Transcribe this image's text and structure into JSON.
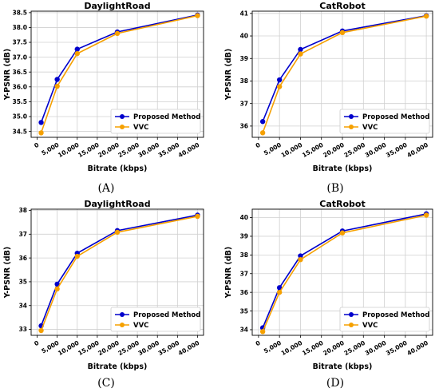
{
  "chart_data": [
    {
      "type": "line",
      "title": "DaylightRoad",
      "xlabel": "Bitrate (kbps)",
      "ylabel": "Y-PSNR (dB)",
      "xlim": [
        -1500,
        41500
      ],
      "ylim": [
        34.3,
        38.55
      ],
      "xticks": [
        0,
        5000,
        10000,
        15000,
        20000,
        25000,
        30000,
        35000,
        40000
      ],
      "xtick_labels": [
        "0",
        "5,000",
        "10,000",
        "15,000",
        "20,000",
        "25,000",
        "30,000",
        "35,000",
        "40,000"
      ],
      "yticks": [
        34.5,
        35.0,
        35.5,
        36.0,
        36.5,
        37.0,
        37.5,
        38.0,
        38.5
      ],
      "ytick_labels": [
        "34.5",
        "35.0",
        "35.5",
        "36.0",
        "36.5",
        "37.0",
        "37.5",
        "38.0",
        "38.5"
      ],
      "grid": true,
      "legend_position": "lower-right",
      "caption": "(A)",
      "series": [
        {
          "name": "Proposed Method",
          "color": "#0000cc",
          "x": [
            1000,
            5000,
            10000,
            20000,
            40000
          ],
          "y": [
            34.8,
            36.25,
            37.27,
            37.85,
            38.42
          ]
        },
        {
          "name": "VVC",
          "color": "#f5a000",
          "x": [
            1000,
            5000,
            10000,
            20000,
            40000
          ],
          "y": [
            34.45,
            36.02,
            37.12,
            37.8,
            38.4
          ]
        }
      ]
    },
    {
      "type": "line",
      "title": "CatRobot",
      "xlabel": "Bitrate (kbps)",
      "ylabel": "Y-PSNR (dB)",
      "xlim": [
        -1500,
        41500
      ],
      "ylim": [
        35.5,
        41.1
      ],
      "xticks": [
        0,
        5000,
        10000,
        15000,
        20000,
        25000,
        30000,
        35000,
        40000
      ],
      "xtick_labels": [
        "0",
        "5,000",
        "10,000",
        "15,000",
        "20,000",
        "25,000",
        "30,000",
        "35,000",
        "40,000"
      ],
      "yticks": [
        36,
        37,
        38,
        39,
        40,
        41
      ],
      "ytick_labels": [
        "36",
        "37",
        "38",
        "39",
        "40",
        "41"
      ],
      "grid": true,
      "legend_position": "lower-right",
      "caption": "(B)",
      "series": [
        {
          "name": "Proposed Method",
          "color": "#0000cc",
          "x": [
            1000,
            5000,
            10000,
            20000,
            40000
          ],
          "y": [
            36.2,
            38.05,
            39.4,
            40.22,
            40.9
          ]
        },
        {
          "name": "VVC",
          "color": "#f5a000",
          "x": [
            1000,
            5000,
            10000,
            20000,
            40000
          ],
          "y": [
            35.7,
            37.75,
            39.2,
            40.15,
            40.88
          ]
        }
      ]
    },
    {
      "type": "line",
      "title": "DaylightRoad",
      "xlabel": "Bitrate (kbps)",
      "ylabel": "Y-PSNR (dB)",
      "xlim": [
        -1500,
        41500
      ],
      "ylim": [
        32.75,
        38.05
      ],
      "xticks": [
        0,
        5000,
        10000,
        15000,
        20000,
        25000,
        30000,
        35000,
        40000
      ],
      "xtick_labels": [
        "0",
        "5,000",
        "10,000",
        "15,000",
        "20,000",
        "25,000",
        "30,000",
        "35,000",
        "40,000"
      ],
      "yticks": [
        33,
        34,
        35,
        36,
        37,
        38
      ],
      "ytick_labels": [
        "33",
        "34",
        "35",
        "36",
        "37",
        "38"
      ],
      "grid": true,
      "legend_position": "lower-right",
      "caption": "(C)",
      "series": [
        {
          "name": "Proposed Method",
          "color": "#0000cc",
          "x": [
            1000,
            5000,
            10000,
            20000,
            40000
          ],
          "y": [
            33.15,
            34.9,
            36.2,
            37.15,
            37.8
          ]
        },
        {
          "name": "VVC",
          "color": "#f5a000",
          "x": [
            1000,
            5000,
            10000,
            20000,
            40000
          ],
          "y": [
            32.95,
            34.7,
            36.07,
            37.08,
            37.75
          ]
        }
      ]
    },
    {
      "type": "line",
      "title": "CatRobot",
      "xlabel": "Bitrate (kbps)",
      "ylabel": "Y-PSNR (dB)",
      "xlim": [
        -1500,
        41500
      ],
      "ylim": [
        33.7,
        40.45
      ],
      "xticks": [
        0,
        5000,
        10000,
        15000,
        20000,
        25000,
        30000,
        35000,
        40000
      ],
      "xtick_labels": [
        "0",
        "5,000",
        "10,000",
        "15,000",
        "20,000",
        "25,000",
        "30,000",
        "35,000",
        "40,000"
      ],
      "yticks": [
        34,
        35,
        36,
        37,
        38,
        39,
        40
      ],
      "ytick_labels": [
        "34",
        "35",
        "36",
        "37",
        "38",
        "39",
        "40"
      ],
      "grid": true,
      "legend_position": "lower-right",
      "caption": "(D)",
      "series": [
        {
          "name": "Proposed Method",
          "color": "#0000cc",
          "x": [
            1000,
            5000,
            10000,
            20000,
            40000
          ],
          "y": [
            34.1,
            36.25,
            37.95,
            39.28,
            40.2
          ]
        },
        {
          "name": "VVC",
          "color": "#f5a000",
          "x": [
            1000,
            5000,
            10000,
            20000,
            40000
          ],
          "y": [
            33.9,
            36.0,
            37.75,
            39.18,
            40.13
          ]
        }
      ]
    }
  ]
}
